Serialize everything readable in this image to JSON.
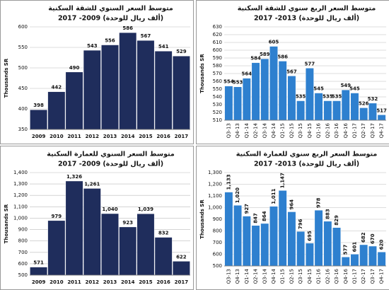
{
  "chart_data": [
    {
      "type": "bar",
      "title": "متوسط السعر السنوي للشقة السكنية",
      "subtitle": "(ألف ريال للوحدة) 2009- 2017",
      "ylabel": "Thousands SR",
      "color": "#1f2d5c",
      "grid": true,
      "categories": [
        "2009",
        "2010",
        "2011",
        "2012",
        "2013",
        "2014",
        "2015",
        "2016",
        "2017"
      ],
      "values": [
        398,
        442,
        490,
        543,
        556,
        586,
        567,
        541,
        529
      ],
      "ylim": [
        350,
        600
      ],
      "yticks": [
        350,
        400,
        450,
        500,
        550,
        600
      ]
    },
    {
      "type": "bar",
      "title": "متوسط السعر الربع سنوي للشقة السكنية",
      "subtitle": "(ألف ريال للوحدة) 2013- 2017",
      "ylabel": "Thousands SR",
      "color": "#2e80cf",
      "grid": true,
      "categories": [
        "Q3-13",
        "Q4-13",
        "Q1-14",
        "Q2-14",
        "Q3-14",
        "Q4-14",
        "Q1-15",
        "Q2-15",
        "Q3-15",
        "Q4-15",
        "Q1-16",
        "Q2-16",
        "Q3-16",
        "Q4-16",
        "Q1-17",
        "Q2-17",
        "Q3-17",
        "Q4-17"
      ],
      "values": [
        554,
        553,
        564,
        584,
        589,
        605,
        586,
        567,
        535,
        577,
        545,
        535,
        535,
        549,
        545,
        526,
        532,
        517
      ],
      "ylim": [
        510,
        630
      ],
      "yticks": [
        510,
        520,
        530,
        540,
        550,
        560,
        570,
        580,
        590,
        600,
        610,
        620,
        630
      ]
    },
    {
      "type": "bar",
      "title": "متوسط السعر السنوي للعمارة السكنية",
      "subtitle": "(ألف ريال للوحدة) 2009- 2017",
      "ylabel": "Thousands SR",
      "color": "#1f2d5c",
      "grid": true,
      "categories": [
        "2009",
        "2010",
        "2011",
        "2012",
        "2013",
        "2014",
        "2015",
        "2016",
        "2017"
      ],
      "values": [
        571,
        979,
        1326,
        1261,
        1040,
        923,
        1039,
        832,
        622
      ],
      "value_labels": [
        "571",
        "979",
        "1,326",
        "1,261",
        "1,040",
        "923",
        "1,039",
        "832",
        "622"
      ],
      "ylim": [
        500,
        1400
      ],
      "yticks": [
        500,
        600,
        700,
        800,
        900,
        {
          "value": 1000,
          "label": "1,000"
        },
        {
          "value": 1100,
          "label": "1,100"
        },
        {
          "value": 1200,
          "label": "1,200"
        },
        {
          "value": 1300,
          "label": "1,300"
        },
        {
          "value": 1400,
          "label": "1,400"
        }
      ]
    },
    {
      "type": "bar",
      "title": "متوسط السعر الربع سنوي للعمارة السكنية",
      "subtitle": "(ألف ريال للوحدة) 2013- 2017",
      "ylabel": "Thousands SR",
      "color": "#2e80cf",
      "grid": true,
      "categories": [
        "Q3-13",
        "Q4-13",
        "Q1-14",
        "Q2-14",
        "Q3-14",
        "Q4-14",
        "Q1-15",
        "Q2-15",
        "Q3-15",
        "Q4-15",
        "Q1-16",
        "Q2-16",
        "Q3-16",
        "Q4-16",
        "Q1-17",
        "Q2-17",
        "Q3-17",
        "Q4-17"
      ],
      "values": [
        1133,
        1020,
        927,
        847,
        864,
        1011,
        1147,
        964,
        796,
        695,
        978,
        883,
        829,
        577,
        601,
        682,
        670,
        620
      ],
      "value_labels": [
        "1,133",
        "1,020",
        "927",
        "847",
        "864",
        "1,011",
        "1,147",
        "964",
        "796",
        "695",
        "978",
        "883",
        "829",
        "577",
        "601",
        "682",
        "670",
        "620"
      ],
      "ylim": [
        500,
        1300
      ],
      "yticks": [
        500,
        600,
        700,
        800,
        900,
        {
          "value": 1000,
          "label": "1,000"
        },
        {
          "value": 1100,
          "label": "1,100"
        },
        {
          "value": 1200,
          "label": "1,200"
        },
        {
          "value": 1300,
          "label": "1,300"
        }
      ]
    }
  ]
}
